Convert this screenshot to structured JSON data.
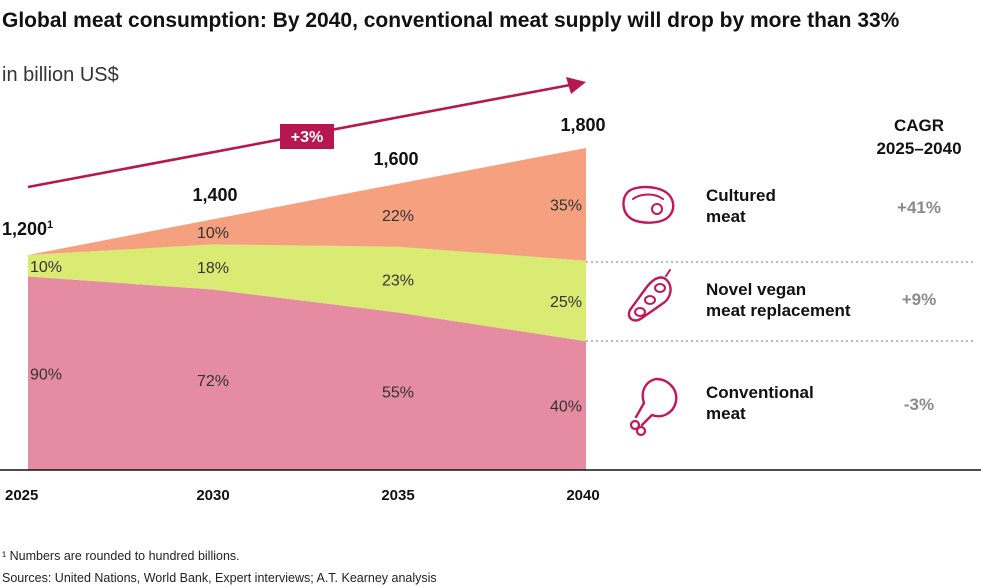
{
  "chart_data": {
    "type": "area",
    "title": "Global meat consumption: By 2040, conventional meat supply will drop by more than 33%",
    "unit": "in billion US$",
    "x": [
      "2025",
      "2030",
      "2035",
      "2040"
    ],
    "totals": [
      1200,
      1400,
      1600,
      1800
    ],
    "total_labels": [
      "1,200",
      "1,400",
      "1,600",
      "1,800"
    ],
    "first_total_superscript": "1",
    "growth_badge": "+3%",
    "series": [
      {
        "name": "Conventional meat",
        "label_lines": [
          "Conventional",
          "meat"
        ],
        "color": "#e58ba2",
        "icon": "chicken-drumstick-icon",
        "shares": [
          90,
          72,
          55,
          40
        ],
        "share_labels": [
          "90%",
          "72%",
          "55%",
          "40%"
        ],
        "cagr": "-3%"
      },
      {
        "name": "Novel vegan meat replacement",
        "label_lines": [
          "Novel vegan",
          "meat replacement"
        ],
        "color": "#d9eb72",
        "icon": "soybean-pod-icon",
        "shares": [
          10,
          18,
          23,
          25
        ],
        "share_labels": [
          "10%",
          "18%",
          "23%",
          "25%"
        ],
        "cagr": "+9%"
      },
      {
        "name": "Cultured meat",
        "label_lines": [
          "Cultured",
          "meat"
        ],
        "color": "#f5a07e",
        "icon": "steak-icon",
        "shares": [
          0,
          10,
          22,
          35
        ],
        "share_labels": [
          "",
          "10%",
          "22%",
          "35%"
        ],
        "cagr": "+41%"
      }
    ],
    "cagr_header": [
      "CAGR",
      "2025–2040"
    ],
    "icon_color": "#c2185b",
    "arrow_color": "#b5174e"
  },
  "footnotes": {
    "note1": "¹ Numbers are rounded to hundred billions.",
    "sources": "Sources: United Nations, World Bank, Expert interviews; A.T. Kearney analysis"
  }
}
